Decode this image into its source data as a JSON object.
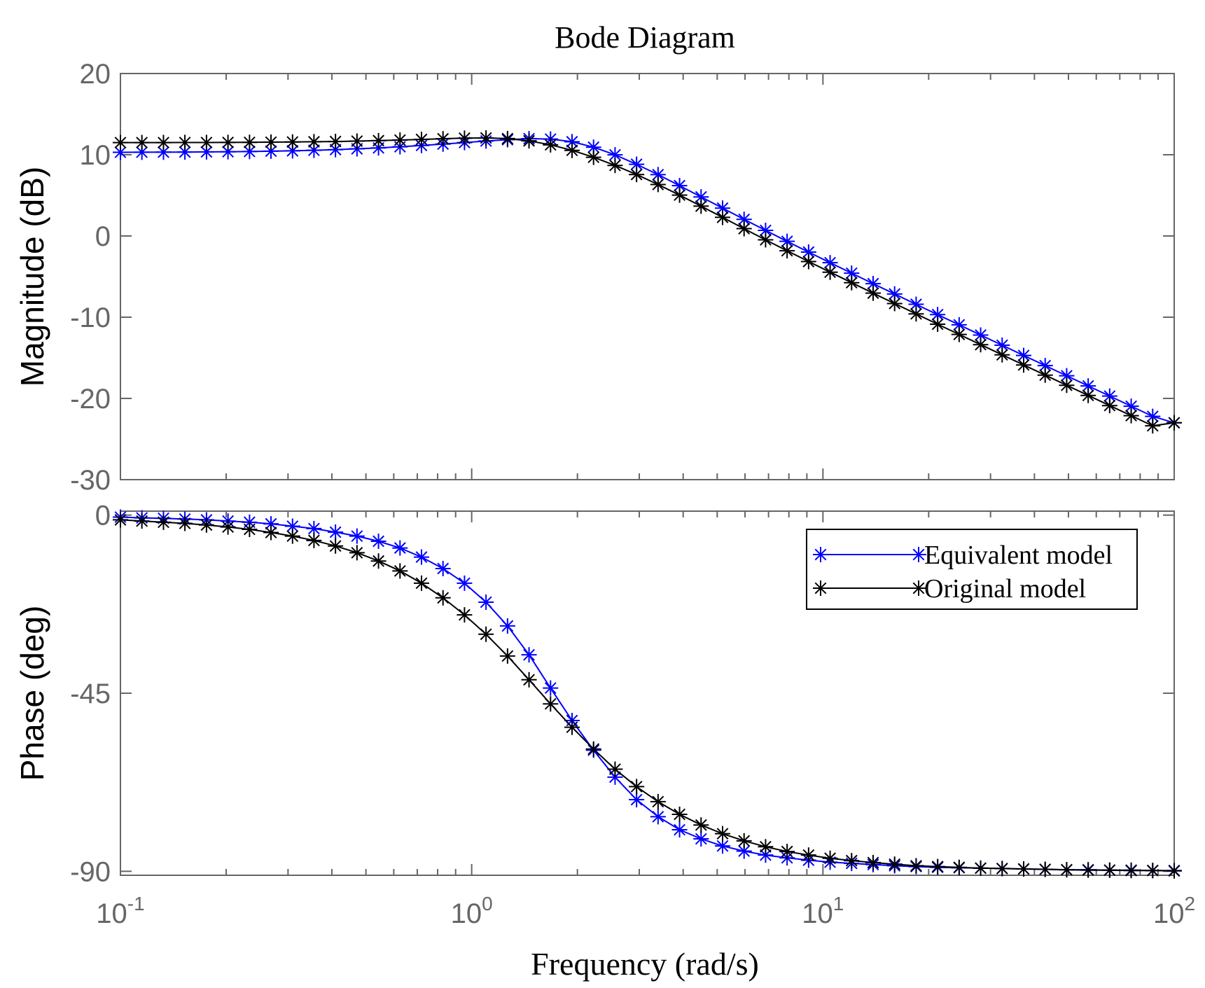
{
  "chart_data": {
    "type": "line",
    "title": "Bode Diagram",
    "xlabel": "Frequency  (rad/s)",
    "x_scale": "log",
    "xlim": [
      0.1,
      100
    ],
    "x_ticks": [
      {
        "value": 0.1,
        "base": "10",
        "exp": "-1"
      },
      {
        "value": 1,
        "base": "10",
        "exp": "0"
      },
      {
        "value": 10,
        "base": "10",
        "exp": "1"
      },
      {
        "value": 100,
        "base": "10",
        "exp": "2"
      }
    ],
    "marker": "asterisk",
    "legend": {
      "position": "top-right of phase plot",
      "entries": [
        "Equivalent model",
        "Original model"
      ]
    },
    "colors": {
      "Equivalent model": "#0000ff",
      "Original model": "#000000",
      "axis": "#666666"
    },
    "panels": [
      {
        "name": "magnitude",
        "ylabel": "Magnitude (dB)",
        "ylim": [
          -30,
          20
        ],
        "y_ticks": [
          20,
          10,
          0,
          -10,
          -20,
          -30
        ],
        "y_tick_labels": [
          "20",
          "10",
          "0",
          "-10",
          "-20",
          "-30"
        ],
        "series": [
          {
            "name": "Equivalent model",
            "key": "eq_mag"
          },
          {
            "name": "Original model",
            "key": "orig_mag"
          }
        ]
      },
      {
        "name": "phase",
        "ylabel": "Phase (deg)",
        "ylim": [
          -91,
          1
        ],
        "y_ticks": [
          0,
          -45,
          -90
        ],
        "y_tick_labels": [
          "0",
          "-45",
          "-90"
        ],
        "series": [
          {
            "name": "Equivalent model",
            "key": "eq_phase"
          },
          {
            "name": "Original model",
            "key": "orig_phase"
          }
        ]
      }
    ],
    "x": [
      0.1,
      0.1151,
      0.1326,
      0.1526,
      0.1758,
      0.2024,
      0.2331,
      0.2683,
      0.309,
      0.3556,
      0.4095,
      0.4715,
      0.5429,
      0.6251,
      0.7197,
      0.8286,
      0.954,
      1.0985,
      1.2649,
      1.4563,
      1.6768,
      1.9307,
      2.223,
      2.5595,
      2.9471,
      3.3932,
      3.907,
      4.4984,
      5.1795,
      5.9636,
      6.8665,
      7.9061,
      9.1029,
      10.4811,
      12.0679,
      13.895,
      15.9986,
      18.4207,
      21.2095,
      24.4205,
      28.1177,
      32.3746,
      37.2759,
      42.9193,
      49.4171,
      56.8987,
      65.5129,
      75.4312,
      86.8511,
      100
    ],
    "series": {
      "eq_mag": [
        10.3,
        10.31,
        10.32,
        10.33,
        10.35,
        10.37,
        10.4,
        10.44,
        10.48,
        10.55,
        10.63,
        10.73,
        10.84,
        10.98,
        11.14,
        11.31,
        11.5,
        11.69,
        11.85,
        11.98,
        11.93,
        11.6,
        10.93,
        9.99,
        8.83,
        7.55,
        6.2,
        4.81,
        3.43,
        2.05,
        0.69,
        -0.66,
        -1.98,
        -3.29,
        -4.58,
        -5.87,
        -7.14,
        -8.41,
        -9.68,
        -10.94,
        -12.2,
        -13.45,
        -14.71,
        -15.96,
        -17.21,
        -18.46,
        -19.71,
        -20.96,
        -22.21,
        -23.0
      ],
      "orig_mag": [
        11.5,
        11.5,
        11.5,
        11.51,
        11.51,
        11.52,
        11.53,
        11.55,
        11.57,
        11.6,
        11.63,
        11.68,
        11.74,
        11.81,
        11.89,
        11.97,
        12.04,
        12.07,
        11.99,
        11.71,
        11.22,
        10.54,
        9.69,
        8.69,
        7.57,
        6.34,
        5.03,
        3.67,
        2.29,
        0.9,
        -0.47,
        -1.82,
        -3.15,
        -4.46,
        -5.75,
        -7.04,
        -8.32,
        -9.59,
        -10.86,
        -12.12,
        -13.38,
        -14.63,
        -15.88,
        -17.13,
        -18.38,
        -19.63,
        -20.88,
        -22.12,
        -23.37,
        -23.0
      ],
      "eq_phase": [
        -0.5,
        -0.7,
        -0.8,
        -1.0,
        -1.2,
        -1.5,
        -1.8,
        -2.2,
        -2.8,
        -3.4,
        -4.3,
        -5.3,
        -6.6,
        -8.3,
        -10.6,
        -13.5,
        -17.2,
        -22.0,
        -28.0,
        -35.3,
        -43.7,
        -51.9,
        -59.4,
        -66.2,
        -71.9,
        -76.2,
        -79.5,
        -81.8,
        -83.6,
        -84.9,
        -85.9,
        -86.6,
        -87.2,
        -87.7,
        -88.0,
        -88.3,
        -88.6,
        -88.8,
        -89.0,
        -89.1,
        -89.2,
        -89.3,
        -89.4,
        -89.5,
        -89.6,
        -89.6,
        -89.7,
        -89.7,
        -89.8,
        -89.8
      ],
      "orig_phase": [
        -1.2,
        -1.5,
        -1.8,
        -2.1,
        -2.5,
        -3.0,
        -3.6,
        -4.4,
        -5.3,
        -6.4,
        -7.8,
        -9.5,
        -11.6,
        -14.1,
        -17.2,
        -20.9,
        -25.2,
        -30.1,
        -35.6,
        -41.6,
        -47.7,
        -53.6,
        -59.1,
        -64.2,
        -68.6,
        -72.4,
        -75.6,
        -78.3,
        -80.5,
        -82.3,
        -83.8,
        -85.0,
        -85.9,
        -86.7,
        -87.3,
        -87.8,
        -88.2,
        -88.6,
        -88.8,
        -89.0,
        -89.2,
        -89.3,
        -89.4,
        -89.5,
        -89.6,
        -89.7,
        -89.7,
        -89.8,
        -89.8,
        -89.9
      ]
    }
  }
}
